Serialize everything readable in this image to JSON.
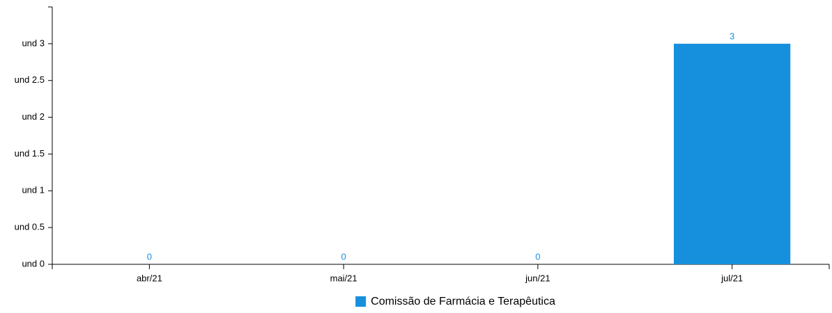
{
  "chart_data": {
    "type": "bar",
    "categories": [
      "abr/21",
      "mai/21",
      "jun/21",
      "jul/21"
    ],
    "series": [
      {
        "name": "Comissão de Farmácia e Terapêutica",
        "color": "#1690dd",
        "values": [
          0,
          0,
          0,
          3
        ]
      }
    ],
    "ylim": [
      0,
      3.5
    ],
    "yticks": [
      {
        "value": 0,
        "label": "und 0"
      },
      {
        "value": 0.5,
        "label": "und 0.5"
      },
      {
        "value": 1,
        "label": "und 1"
      },
      {
        "value": 1.5,
        "label": "und 1.5"
      },
      {
        "value": 2,
        "label": "und 2"
      },
      {
        "value": 2.5,
        "label": "und 2.5"
      },
      {
        "value": 3,
        "label": "und 3"
      }
    ],
    "legend": "bottom"
  }
}
